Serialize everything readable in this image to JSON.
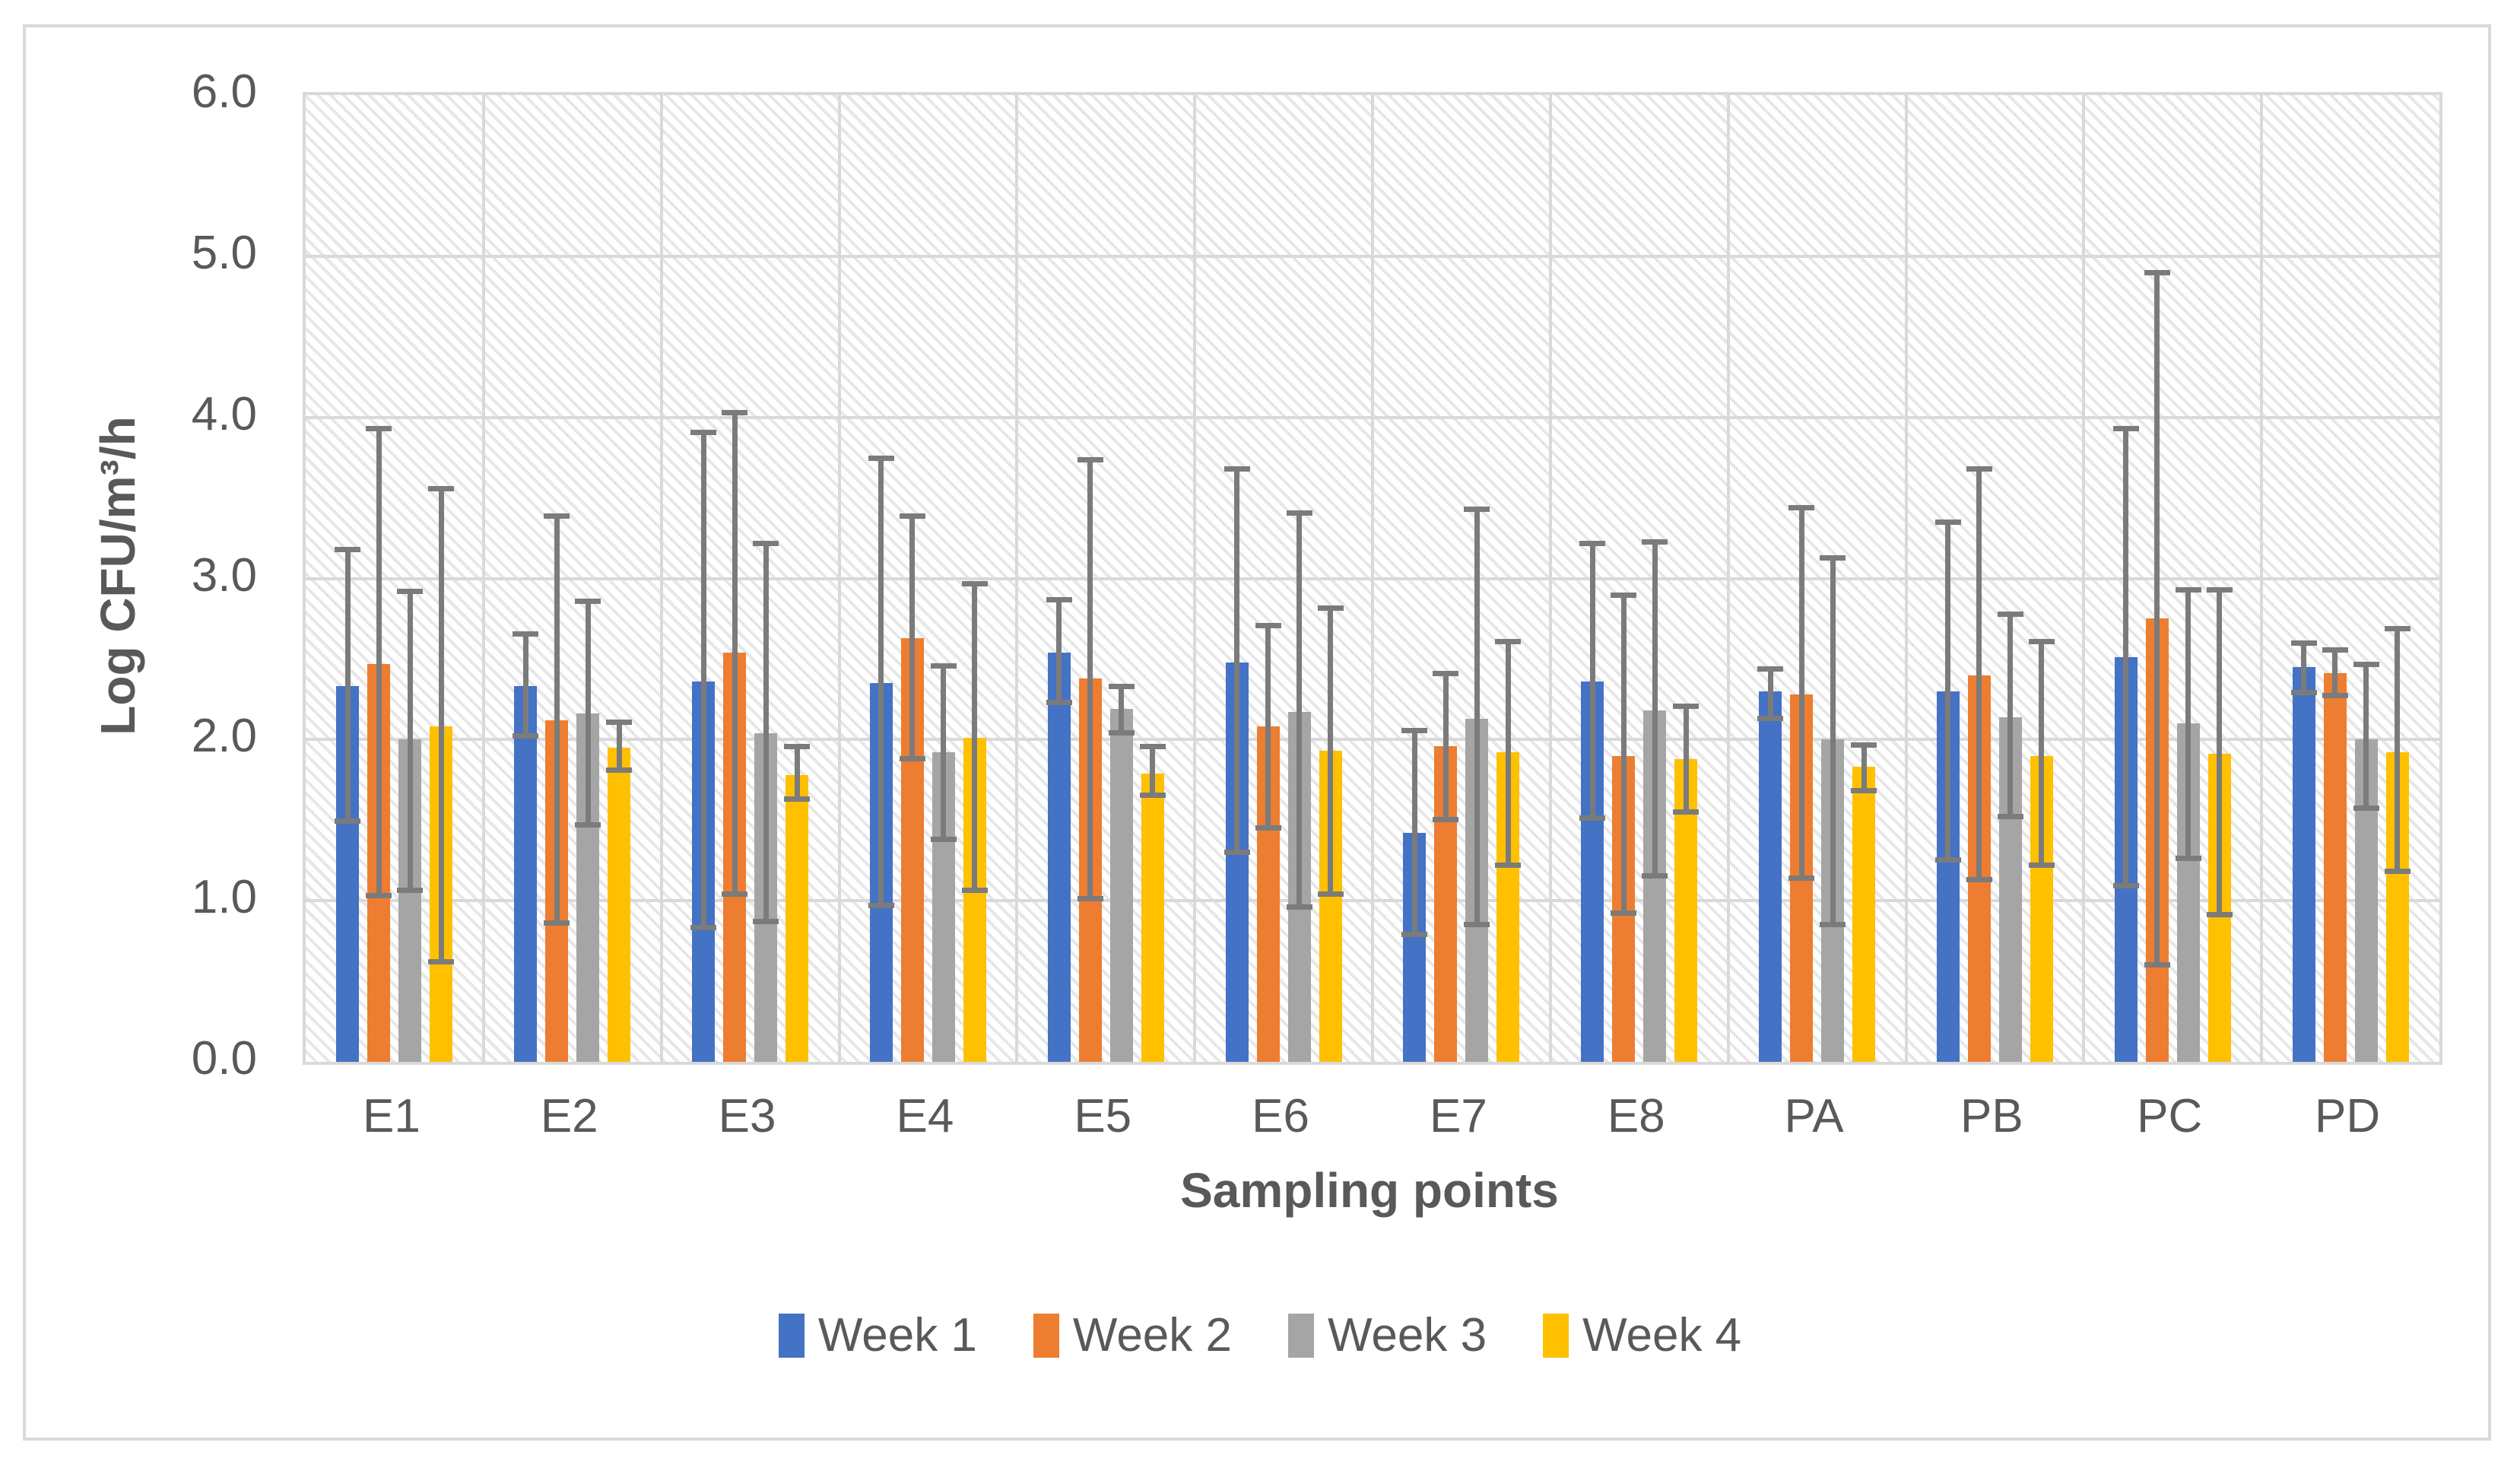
{
  "chart_data": {
    "type": "bar",
    "title": "",
    "xlabel": "Sampling points",
    "ylabel": "Log CFU/m³/h",
    "ylim": [
      0,
      6
    ],
    "ytick_labels": [
      "0.0",
      "1.0",
      "2.0",
      "3.0",
      "4.0",
      "5.0",
      "6.0"
    ],
    "categories": [
      "E1",
      "E2",
      "E3",
      "E4",
      "E5",
      "E6",
      "E7",
      "E8",
      "PA",
      "PB",
      "PC",
      "PD"
    ],
    "grid": true,
    "legend_position": "bottom",
    "plot_background": "diagonal-hatch",
    "error_bar_color": "#7b7b7b",
    "gridline_color": "#d9d9d9",
    "series": [
      {
        "name": "Week 1",
        "color": "#4472C4",
        "values": [
          2.33,
          2.33,
          2.36,
          2.35,
          2.54,
          2.48,
          1.42,
          2.36,
          2.3,
          2.3,
          2.51,
          2.45
        ],
        "error_low": [
          1.49,
          2.02,
          0.83,
          0.97,
          2.23,
          1.3,
          0.79,
          1.51,
          2.13,
          1.25,
          1.09,
          2.29
        ],
        "error_high": [
          3.18,
          2.66,
          3.91,
          3.75,
          2.87,
          3.68,
          2.06,
          3.22,
          2.44,
          3.35,
          3.93,
          2.6
        ]
      },
      {
        "name": "Week 2",
        "color": "#ED7D31",
        "values": [
          2.47,
          2.12,
          2.54,
          2.63,
          2.38,
          2.08,
          1.96,
          1.9,
          2.28,
          2.4,
          2.75,
          2.41
        ],
        "error_low": [
          1.03,
          0.86,
          1.04,
          1.88,
          1.01,
          1.45,
          1.5,
          0.92,
          1.14,
          1.13,
          0.6,
          2.27
        ],
        "error_high": [
          3.93,
          3.39,
          4.03,
          3.39,
          3.74,
          2.71,
          2.41,
          2.9,
          3.44,
          3.68,
          4.9,
          2.56
        ]
      },
      {
        "name": "Week 3",
        "color": "#A5A5A5",
        "values": [
          2.0,
          2.16,
          2.04,
          1.92,
          2.19,
          2.17,
          2.13,
          2.18,
          2.0,
          2.14,
          2.1,
          2.0
        ],
        "error_low": [
          1.06,
          1.47,
          0.87,
          1.38,
          2.04,
          0.96,
          0.85,
          1.15,
          0.85,
          1.52,
          1.26,
          1.57
        ],
        "error_high": [
          2.92,
          2.86,
          3.22,
          2.46,
          2.33,
          3.41,
          3.43,
          3.23,
          3.13,
          2.78,
          2.93,
          2.47
        ]
      },
      {
        "name": "Week 4",
        "color": "#FFC000",
        "values": [
          2.08,
          1.95,
          1.78,
          2.01,
          1.79,
          1.93,
          1.92,
          1.88,
          1.83,
          1.9,
          1.91,
          1.92
        ],
        "error_low": [
          0.62,
          1.81,
          1.63,
          1.06,
          1.65,
          1.04,
          1.22,
          1.55,
          1.68,
          1.22,
          0.91,
          1.18
        ],
        "error_high": [
          3.56,
          2.11,
          1.96,
          2.97,
          1.96,
          2.82,
          2.61,
          2.21,
          1.97,
          2.61,
          2.93,
          2.69
        ]
      }
    ]
  }
}
